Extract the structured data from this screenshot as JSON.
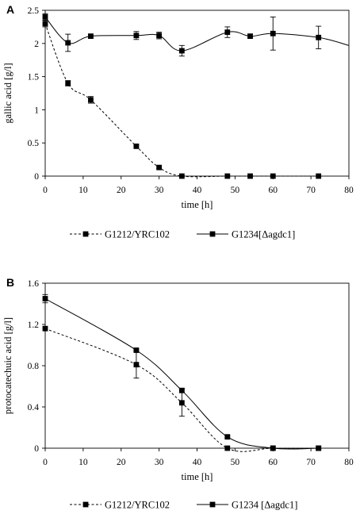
{
  "chart_data": [
    {
      "panel_label": "A",
      "type": "line",
      "xlabel": "time [h]",
      "ylabel": "gallic acid [g/l]",
      "xlim": [
        0,
        80
      ],
      "ylim": [
        0,
        2.5
      ],
      "xticks": [
        0,
        10,
        20,
        30,
        40,
        50,
        60,
        70,
        80
      ],
      "yticks": [
        0,
        0.5,
        1,
        1.5,
        2,
        2.5
      ],
      "ytick_labels": [
        "0",
        "0.5",
        "1",
        "1.5",
        "2",
        "2.5"
      ],
      "grid": false,
      "legend_position": "bottom",
      "series": [
        {
          "name": "G1212/YRC102",
          "line_style": "dashed",
          "points": [
            {
              "x": 0,
              "y": 2.3,
              "err": 0.05
            },
            {
              "x": 6,
              "y": 1.4,
              "err": 0.04
            },
            {
              "x": 12,
              "y": 1.15,
              "err": 0.05
            },
            {
              "x": 24,
              "y": 0.45,
              "err": 0.02
            },
            {
              "x": 30,
              "y": 0.13,
              "err": 0.02
            },
            {
              "x": 36,
              "y": 0.0,
              "err": 0.0
            },
            {
              "x": 48,
              "y": 0.0,
              "err": 0.0
            },
            {
              "x": 54,
              "y": 0.0,
              "err": 0.0
            },
            {
              "x": 60,
              "y": 0.0,
              "err": 0.0
            },
            {
              "x": 72,
              "y": 0.0,
              "err": 0.0
            }
          ]
        },
        {
          "name": "G1234[Δagdc1]",
          "line_style": "solid",
          "points": [
            {
              "x": 0,
              "y": 2.4,
              "err": 0.05
            },
            {
              "x": 6,
              "y": 2.01,
              "err": 0.13
            },
            {
              "x": 12,
              "y": 2.11,
              "err": 0.03
            },
            {
              "x": 24,
              "y": 2.12,
              "err": 0.06
            },
            {
              "x": 30,
              "y": 2.12,
              "err": 0.05
            },
            {
              "x": 36,
              "y": 1.89,
              "err": 0.08
            },
            {
              "x": 48,
              "y": 2.17,
              "err": 0.08
            },
            {
              "x": 54,
              "y": 2.11,
              "err": 0.03
            },
            {
              "x": 60,
              "y": 2.15,
              "err": 0.25
            },
            {
              "x": 72,
              "y": 2.09,
              "err": 0.17
            }
          ],
          "curve_extends_to": {
            "x": 80,
            "y": 1.97
          }
        }
      ]
    },
    {
      "panel_label": "B",
      "type": "line",
      "xlabel": "time [h]",
      "ylabel": "protocatechuic acid [g/l]",
      "xlim": [
        0,
        80
      ],
      "ylim": [
        0,
        1.6
      ],
      "xticks": [
        0,
        10,
        20,
        30,
        40,
        50,
        60,
        70,
        80
      ],
      "yticks": [
        0,
        0.4,
        0.8,
        1.2,
        1.6
      ],
      "ytick_labels": [
        "0",
        "0.4",
        "0.8",
        "1.2",
        "1.6"
      ],
      "grid": false,
      "legend_position": "bottom",
      "series": [
        {
          "name": "G1212/YRC102",
          "line_style": "dashed",
          "points": [
            {
              "x": 0,
              "y": 1.16,
              "err": 0.0
            },
            {
              "x": 24,
              "y": 0.81,
              "err": 0.13
            },
            {
              "x": 36,
              "y": 0.44,
              "err": 0.13
            },
            {
              "x": 48,
              "y": 0.0,
              "err": 0.0
            },
            {
              "x": 60,
              "y": 0.0,
              "err": 0.0
            },
            {
              "x": 72,
              "y": 0.0,
              "err": 0.0
            }
          ]
        },
        {
          "name": "G1234 [Δagdc1]",
          "line_style": "solid",
          "points": [
            {
              "x": 0,
              "y": 1.45,
              "err": 0.04
            },
            {
              "x": 24,
              "y": 0.95,
              "err": 0.01
            },
            {
              "x": 36,
              "y": 0.56,
              "err": 0.02
            },
            {
              "x": 48,
              "y": 0.11,
              "err": 0.01
            },
            {
              "x": 60,
              "y": 0.0,
              "err": 0.0
            },
            {
              "x": 72,
              "y": 0.0,
              "err": 0.0
            }
          ]
        }
      ]
    }
  ]
}
